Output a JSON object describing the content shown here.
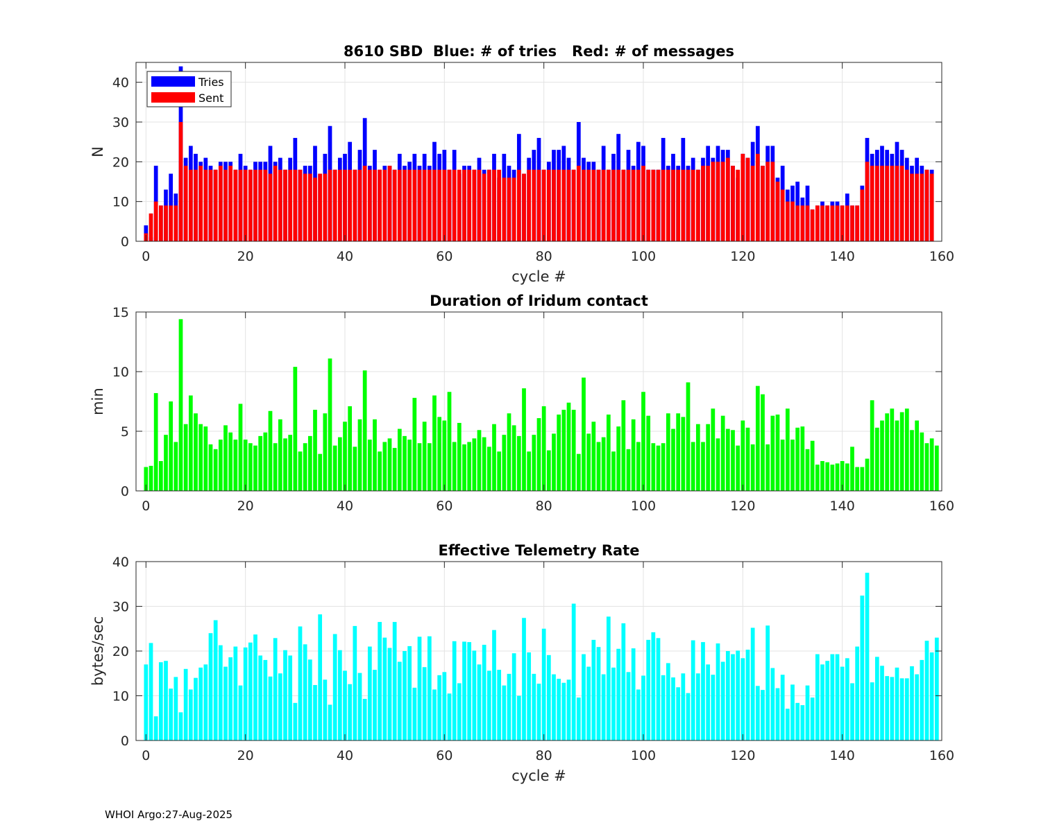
{
  "footer": "WHOI Argo:27-Aug-2025",
  "chart_data": [
    {
      "type": "bar",
      "stacked": "overlay",
      "title": "8610 SBD  Blue: # of tries   Red: # of messages",
      "xlabel": "cycle #",
      "ylabel": "N",
      "xlim": [
        -2,
        160
      ],
      "ylim": [
        0,
        45
      ],
      "xticks": [
        "0",
        "20",
        "40",
        "60",
        "80",
        "100",
        "120",
        "140",
        "160"
      ],
      "yticks": [
        "0",
        "10",
        "20",
        "30",
        "40"
      ],
      "grid": true,
      "legend_position": "top-left",
      "series": [
        {
          "name": "Tries",
          "color": "#0000ff",
          "values": [
            4,
            1,
            19,
            9,
            13,
            17,
            12,
            44,
            21,
            24,
            22,
            20,
            21,
            19,
            18,
            20,
            20,
            20,
            18,
            22,
            19,
            18,
            20,
            20,
            20,
            24,
            20,
            21,
            18,
            21,
            26,
            18,
            19,
            19,
            24,
            17,
            22,
            29,
            18,
            21,
            22,
            25,
            18,
            23,
            31,
            19,
            23,
            18,
            19,
            19,
            18,
            22,
            19,
            20,
            22,
            19,
            22,
            19,
            25,
            22,
            23,
            18,
            23,
            17,
            19,
            19,
            18,
            21,
            18,
            18,
            22,
            16,
            22,
            19,
            18,
            27,
            17,
            21,
            23,
            26,
            18,
            20,
            23,
            23,
            24,
            21,
            18,
            30,
            21,
            20,
            20,
            18,
            24,
            18,
            22,
            27,
            18,
            23,
            19,
            25,
            24,
            18,
            18,
            18,
            26,
            19,
            22,
            19,
            26,
            19,
            21,
            18,
            21,
            24,
            21,
            24,
            23,
            23,
            19,
            16,
            22,
            21,
            25,
            29,
            19,
            24,
            24,
            16,
            19,
            13,
            14,
            15,
            11,
            14,
            8,
            9,
            10,
            9,
            10,
            10,
            9,
            12,
            9,
            9,
            14,
            26,
            22,
            23,
            24,
            23,
            22,
            25,
            23,
            21,
            19,
            21,
            19,
            18,
            18
          ]
        },
        {
          "name": "Sent",
          "color": "#ff0000",
          "values": [
            2,
            7,
            10,
            9,
            9,
            9,
            9,
            30,
            19,
            18,
            18,
            19,
            18,
            18,
            18,
            19,
            18,
            19,
            18,
            18,
            18,
            18,
            18,
            18,
            18,
            17,
            19,
            18,
            18,
            18,
            18,
            18,
            17,
            17,
            16,
            17,
            17,
            18,
            18,
            18,
            18,
            18,
            18,
            18,
            19,
            18,
            18,
            18,
            18,
            19,
            18,
            18,
            18,
            18,
            18,
            18,
            18,
            18,
            18,
            18,
            18,
            18,
            18,
            18,
            18,
            18,
            18,
            18,
            17,
            18,
            18,
            18,
            16,
            16,
            16,
            18,
            17,
            18,
            18,
            18,
            18,
            18,
            18,
            18,
            18,
            18,
            18,
            19,
            18,
            18,
            18,
            18,
            18,
            18,
            18,
            18,
            18,
            18,
            18,
            18,
            19,
            18,
            18,
            18,
            18,
            18,
            18,
            18,
            18,
            18,
            18,
            18,
            19,
            19,
            20,
            20,
            20,
            21,
            19,
            18,
            22,
            21,
            19,
            22,
            19,
            20,
            20,
            15,
            13,
            10,
            10,
            9,
            9,
            9,
            8,
            9,
            9,
            9,
            9,
            9,
            9,
            9,
            9,
            9,
            13,
            20,
            19,
            19,
            19,
            19,
            19,
            19,
            19,
            18,
            17,
            17,
            17,
            18,
            17
          ]
        }
      ]
    },
    {
      "type": "bar",
      "title": "Duration of Iridum contact",
      "xlabel": "",
      "ylabel": "min",
      "xlim": [
        -2,
        160
      ],
      "ylim": [
        0,
        15
      ],
      "xticks": [
        "0",
        "20",
        "40",
        "60",
        "80",
        "100",
        "120",
        "140",
        "160"
      ],
      "yticks": [
        "0",
        "5",
        "10",
        "15"
      ],
      "grid": true,
      "color": "#00ff00",
      "values": [
        2.0,
        2.1,
        8.2,
        2.5,
        4.7,
        7.5,
        4.1,
        14.4,
        5.6,
        8.0,
        6.5,
        5.6,
        5.4,
        3.9,
        3.5,
        4.3,
        5.5,
        4.9,
        4.3,
        7.3,
        4.3,
        4.0,
        3.8,
        4.6,
        4.9,
        6.7,
        4.0,
        6.0,
        4.4,
        4.7,
        10.4,
        3.3,
        4.0,
        4.6,
        6.8,
        3.1,
        6.5,
        11.1,
        3.8,
        4.5,
        5.8,
        7.1,
        3.7,
        6.0,
        10.1,
        4.3,
        6.0,
        3.3,
        4.1,
        4.4,
        3.6,
        5.2,
        4.6,
        4.3,
        7.8,
        4.0,
        5.8,
        4.0,
        8.0,
        6.2,
        5.9,
        8.3,
        4.1,
        5.7,
        3.9,
        4.1,
        4.4,
        5.1,
        4.5,
        3.7,
        5.6,
        3.3,
        4.7,
        6.5,
        5.5,
        4.6,
        8.6,
        3.3,
        4.7,
        6.1,
        7.1,
        3.4,
        4.8,
        6.4,
        6.8,
        7.4,
        6.8,
        3.1,
        9.5,
        4.8,
        5.8,
        4.1,
        4.5,
        6.4,
        3.3,
        5.4,
        7.6,
        3.5,
        6.0,
        4.1,
        8.3,
        6.3,
        4.0,
        3.8,
        4.0,
        6.5,
        5.2,
        6.5,
        6.2,
        9.1,
        4.1,
        5.6,
        4.1,
        5.6,
        6.9,
        4.4,
        6.3,
        5.2,
        5.1,
        3.8,
        5.9,
        5.3,
        3.9,
        8.8,
        8.1,
        3.9,
        6.3,
        6.4,
        4.3,
        6.9,
        4.3,
        5.3,
        5.4,
        3.5,
        4.2,
        2.2,
        2.5,
        2.4,
        2.2,
        2.3,
        2.5,
        2.3,
        3.7,
        2.0,
        2.0,
        2.7,
        7.6,
        5.3,
        5.9,
        6.5,
        6.9,
        5.9,
        6.6,
        6.9,
        5.1,
        5.9,
        4.9,
        4.0,
        4.4,
        3.8
      ]
    },
    {
      "type": "bar",
      "title": "Effective Telemetry Rate",
      "xlabel": "cycle #",
      "ylabel": "bytes/sec",
      "xlim": [
        -2,
        160
      ],
      "ylim": [
        0,
        40
      ],
      "xticks": [
        "0",
        "20",
        "40",
        "60",
        "80",
        "100",
        "120",
        "140",
        "160"
      ],
      "yticks": [
        "0",
        "10",
        "20",
        "30",
        "40"
      ],
      "grid": true,
      "color": "#00ffff",
      "values": [
        17.0,
        21.8,
        5.4,
        17.5,
        17.8,
        11.6,
        14.2,
        6.3,
        16.0,
        11.4,
        14.0,
        16.3,
        17.0,
        24.0,
        26.9,
        21.3,
        16.5,
        18.6,
        21.0,
        12.3,
        20.8,
        21.9,
        23.7,
        19.0,
        18.0,
        14.3,
        22.9,
        15.0,
        20.2,
        19.0,
        8.4,
        25.5,
        21.5,
        18.1,
        12.4,
        28.2,
        13.6,
        8.0,
        23.8,
        20.2,
        15.6,
        12.6,
        25.6,
        15.1,
        9.3,
        21.0,
        15.8,
        26.5,
        23.0,
        20.7,
        26.5,
        17.6,
        20.0,
        21.1,
        11.8,
        23.2,
        16.4,
        23.3,
        11.4,
        14.6,
        15.3,
        10.5,
        22.2,
        12.8,
        22.1,
        22.0,
        20.1,
        17.0,
        21.4,
        15.6,
        24.7,
        15.8,
        12.3,
        14.9,
        19.5,
        10.0,
        27.4,
        19.7,
        14.9,
        12.7,
        25.0,
        19.1,
        14.8,
        13.8,
        12.9,
        13.6,
        30.6,
        9.6,
        19.3,
        16.5,
        22.5,
        20.9,
        14.8,
        27.7,
        16.3,
        20.5,
        26.2,
        15.3,
        20.6,
        11.4,
        14.5,
        22.5,
        24.2,
        22.9,
        14.6,
        17.3,
        14.1,
        11.9,
        15.0,
        10.6,
        22.4,
        15.0,
        22.0,
        17.0,
        14.7,
        21.7,
        17.6,
        20.0,
        19.3,
        20.1,
        18.4,
        20.3,
        25.2,
        12.2,
        11.3,
        25.7,
        16.2,
        11.7,
        14.7,
        7.1,
        12.5,
        8.4,
        7.9,
        12.3,
        9.6,
        19.3,
        17.0,
        17.8,
        19.3,
        19.3,
        16.5,
        18.4,
        12.8,
        21.0,
        32.4,
        37.5,
        13.0,
        18.7,
        16.7,
        14.4,
        14.2,
        16.3,
        13.9,
        13.9,
        16.6,
        14.8,
        18.0,
        22.3,
        19.7,
        23.0
      ]
    }
  ]
}
